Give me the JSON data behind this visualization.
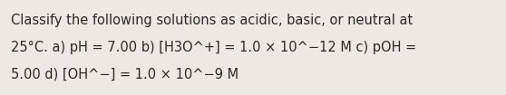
{
  "text_lines": [
    "Classify the following solutions as acidic, basic, or neutral at",
    "25°C. a) pH = 7.00 b) [H3O^+] = 1.0 × 10^−12 M c) pOH =",
    "5.00 d) [OH^−] = 1.0 × 10^−9 M"
  ],
  "background_color": "#ede8e4",
  "text_color": "#2a2a2a",
  "font_size": 10.5,
  "fig_width": 5.58,
  "fig_height": 1.05,
  "dpi": 100
}
